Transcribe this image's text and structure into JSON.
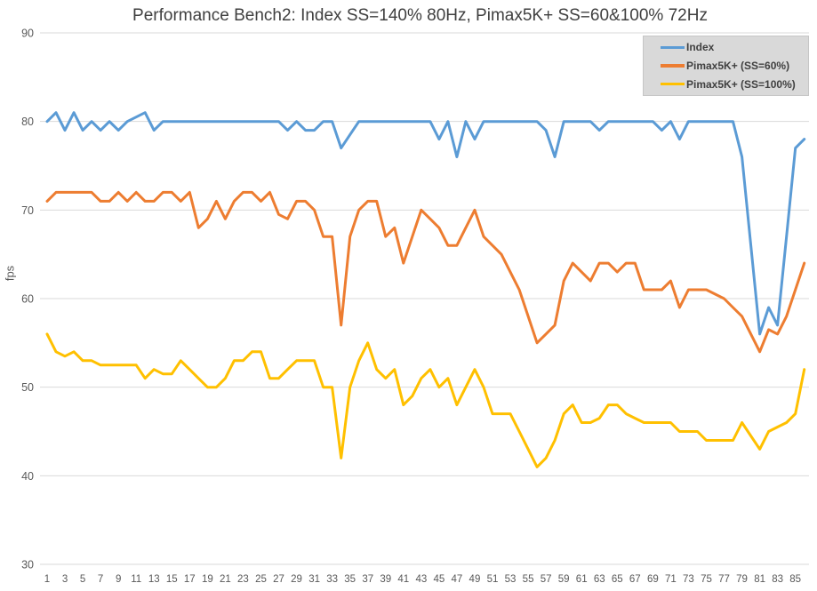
{
  "colors": {
    "background": "#FFFFFF",
    "gridline": "#D9D9D9",
    "tick_text": "#595959",
    "title_text": "#3F3F3F",
    "legend_bg": "#D9D9D9",
    "legend_border": "#C6C6C6",
    "legend_text": "#404040",
    "series_blue": "#5B9BD5",
    "series_orange": "#ED7D31",
    "series_yellow": "#FFC000"
  },
  "chart_data": {
    "type": "line",
    "title": "Performance Bench2: Index SS=140% 80Hz, Pimax5K+ SS=60&100% 72Hz",
    "xlabel": "",
    "ylabel": "fps",
    "x_range": [
      1,
      86
    ],
    "ylim": [
      30,
      90
    ],
    "y_ticks": [
      90,
      80,
      70,
      60,
      50,
      40,
      30
    ],
    "x_tick_labels": [
      "1",
      "3",
      "5",
      "7",
      "9",
      "11",
      "13",
      "15",
      "17",
      "19",
      "21",
      "23",
      "25",
      "27",
      "29",
      "31",
      "33",
      "35",
      "37",
      "39",
      "41",
      "43",
      "45",
      "47",
      "49",
      "51",
      "53",
      "55",
      "57",
      "59",
      "61",
      "63",
      "65",
      "67",
      "69",
      "71",
      "73",
      "75",
      "77",
      "79",
      "81",
      "83",
      "85"
    ],
    "grid": "horizontal",
    "legend_position": "top-right",
    "series": [
      {
        "name": "Index",
        "color": "#5B9BD5",
        "values": [
          80,
          81,
          79,
          81,
          79,
          80,
          79,
          80,
          79,
          80,
          80.5,
          81,
          79,
          80,
          80,
          80,
          80,
          80,
          80,
          80,
          80,
          80,
          80,
          80,
          80,
          80,
          80,
          79,
          80,
          79,
          79,
          80,
          80,
          77,
          78.5,
          80,
          80,
          80,
          80,
          80,
          80,
          80,
          80,
          80,
          78,
          80,
          76,
          80,
          78,
          80,
          80,
          80,
          80,
          80,
          80,
          80,
          79,
          76,
          80,
          80,
          80,
          80,
          79,
          80,
          80,
          80,
          80,
          80,
          80,
          79,
          80,
          78,
          80,
          80,
          80,
          80,
          80,
          80,
          76,
          66,
          56,
          59,
          57,
          67,
          77,
          78
        ]
      },
      {
        "name": "Pimax5K+ (SS=60%)",
        "color": "#ED7D31",
        "values": [
          71,
          72,
          72,
          72,
          72,
          72,
          71,
          71,
          72,
          71,
          72,
          71,
          71,
          72,
          72,
          71,
          72,
          68,
          69,
          71,
          69,
          71,
          72,
          72,
          71,
          72,
          69.5,
          69,
          71,
          71,
          70,
          67,
          67,
          57,
          67,
          70,
          71,
          71,
          67,
          68,
          64,
          67,
          70,
          69,
          68,
          66,
          66,
          68,
          70,
          67,
          66,
          65,
          63,
          61,
          58,
          55,
          56,
          57,
          62,
          64,
          63,
          62,
          64,
          64,
          63,
          64,
          64,
          61,
          61,
          61,
          62,
          59,
          61,
          61,
          61,
          60.5,
          60,
          59,
          58,
          56,
          54,
          56.5,
          56,
          58,
          61,
          64
        ]
      },
      {
        "name": "Pimax5K+ (SS=100%)",
        "color": "#FFC000",
        "values": [
          56,
          54,
          53.5,
          54,
          53,
          53,
          52.5,
          52.5,
          52.5,
          52.5,
          52.5,
          51,
          52,
          51.5,
          51.5,
          53,
          52,
          51,
          50,
          50,
          51,
          53,
          53,
          54,
          54,
          51,
          51,
          52,
          53,
          53,
          53,
          50,
          50,
          42,
          50,
          53,
          55,
          52,
          51,
          52,
          48,
          49,
          51,
          52,
          50,
          51,
          48,
          50,
          52,
          50,
          47,
          47,
          47,
          45,
          43,
          41,
          42,
          44,
          47,
          48,
          46,
          46,
          46.5,
          48,
          48,
          47,
          46.5,
          46,
          46,
          46,
          46,
          45,
          45,
          45,
          44,
          44,
          44,
          44,
          46,
          44.5,
          43,
          45,
          45.5,
          46,
          47,
          52
        ]
      }
    ]
  }
}
